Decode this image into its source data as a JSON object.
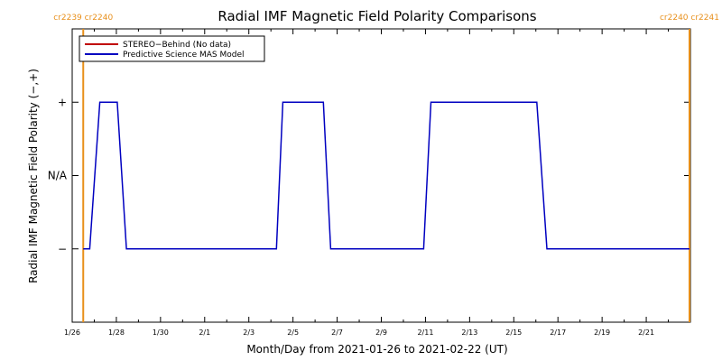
{
  "chart_data": {
    "type": "line",
    "title": "Radial IMF Magnetic Field Polarity Comparisons",
    "xlabel": "Month/Day from 2021-01-26 to 2021-02-22 (UT)",
    "ylabel": "Radial IMF Magnetic Field Polarity (−,+)",
    "x_start": "2021-01-26",
    "x_end": "2021-02-22",
    "xlim": [
      "2021-01-26",
      "2021-02-22"
    ],
    "ylim": [
      -2,
      2
    ],
    "x_ticks": [
      "1/26",
      "1/28",
      "1/30",
      "2/1",
      "2/3",
      "2/5",
      "2/7",
      "2/9",
      "2/11",
      "2/13",
      "2/15",
      "2/17",
      "2/19",
      "2/21"
    ],
    "y_ticks": [
      {
        "label": "+",
        "value": 1
      },
      {
        "label": "N/A",
        "value": 0
      },
      {
        "label": "−",
        "value": -1
      }
    ],
    "carrington_markers": [
      {
        "date": "2021-01-26T12:00",
        "label": "cr2239 cr2240",
        "color": "#e8901c"
      },
      {
        "date": "2021-02-22T23:00",
        "label": "cr2240 cr2241",
        "color": "#e8901c"
      }
    ],
    "legend": "top-left",
    "series": [
      {
        "name": "STEREO−Behind (No data)",
        "color": "#c00000",
        "points": []
      },
      {
        "name": "Predictive Science MAS Model",
        "color": "#0000c0",
        "points": [
          [
            "2021-01-26T12:00",
            -1
          ],
          [
            "2021-01-26T19:00",
            -1
          ],
          [
            "2021-01-27T06:00",
            1
          ],
          [
            "2021-01-28T01:00",
            1
          ],
          [
            "2021-01-28T11:00",
            -1
          ],
          [
            "2021-02-04T06:00",
            -1
          ],
          [
            "2021-02-04T13:00",
            1
          ],
          [
            "2021-02-06T09:00",
            1
          ],
          [
            "2021-02-06T17:00",
            -1
          ],
          [
            "2021-02-10T22:00",
            -1
          ],
          [
            "2021-02-11T06:00",
            1
          ],
          [
            "2021-02-16T01:00",
            1
          ],
          [
            "2021-02-16T12:00",
            -1
          ],
          [
            "2021-02-22T23:00",
            -1
          ]
        ]
      }
    ],
    "grid": false
  }
}
